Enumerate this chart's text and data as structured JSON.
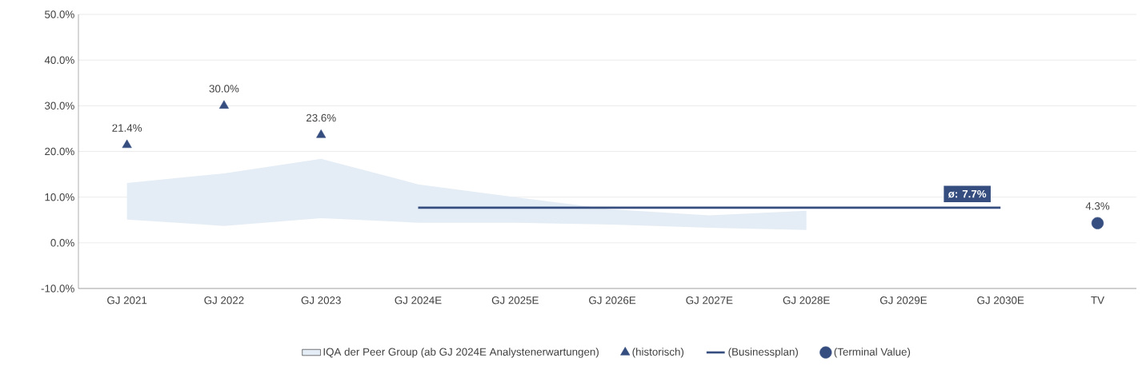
{
  "chart_data": {
    "type": "line",
    "categories": [
      "GJ 2021",
      "GJ 2022",
      "GJ 2023",
      "GJ 2024E",
      "GJ 2025E",
      "GJ 2026E",
      "GJ 2027E",
      "GJ 2028E",
      "GJ 2029E",
      "GJ 2030E",
      "TV"
    ],
    "ylim": [
      -10,
      50
    ],
    "yticks": [
      {
        "value": -10,
        "label": "-10.0%"
      },
      {
        "value": 0,
        "label": "0.0%"
      },
      {
        "value": 10,
        "label": "10.0%"
      },
      {
        "value": 20,
        "label": "20.0%"
      },
      {
        "value": 30,
        "label": "30.0%"
      },
      {
        "value": 40,
        "label": "40.0%"
      },
      {
        "value": 50,
        "label": "50.0%"
      }
    ],
    "grid": "y",
    "legend": "bottom",
    "series": [
      {
        "name": "IQA der Peer Group (ab GJ 2024E Analystenerwartungen)",
        "type": "area",
        "color": "#e4edf5",
        "values": [
          null,
          null,
          null,
          null,
          null,
          null,
          null,
          null,
          null,
          null,
          null
        ],
        "lower": [
          5.1,
          3.7,
          5.4,
          4.4,
          4.4,
          4.0,
          3.3,
          2.8,
          null,
          null,
          null
        ],
        "upper": [
          13.1,
          15.2,
          18.4,
          12.8,
          10.0,
          7.3,
          6.0,
          7.0,
          null,
          null,
          null
        ]
      },
      {
        "name": "(historisch)",
        "type": "scatter",
        "marker": "triangle",
        "color": "#354e7f",
        "values": [
          21.4,
          30.0,
          23.6,
          null,
          null,
          null,
          null,
          null,
          null,
          null,
          null
        ],
        "value_labels": [
          "21.4%",
          "30.0%",
          "23.6%",
          null,
          null,
          null,
          null,
          null,
          null,
          null,
          null
        ]
      },
      {
        "name": "(Businessplan)",
        "color": "#354e7f",
        "values": [
          null,
          null,
          null,
          7.7,
          7.7,
          7.7,
          7.7,
          7.7,
          7.7,
          7.7,
          null
        ]
      },
      {
        "name": "(Terminal Value)",
        "type": "scatter",
        "marker": "circle",
        "color": "#354e7f",
        "values": [
          null,
          null,
          null,
          null,
          null,
          null,
          null,
          null,
          null,
          null,
          4.3
        ],
        "value_labels": [
          null,
          null,
          null,
          null,
          null,
          null,
          null,
          null,
          null,
          null,
          "4.3%"
        ]
      }
    ],
    "annotations": [
      {
        "text": "ø: 7.7%",
        "x": "GJ 2030E",
        "y": 7.7
      }
    ]
  }
}
